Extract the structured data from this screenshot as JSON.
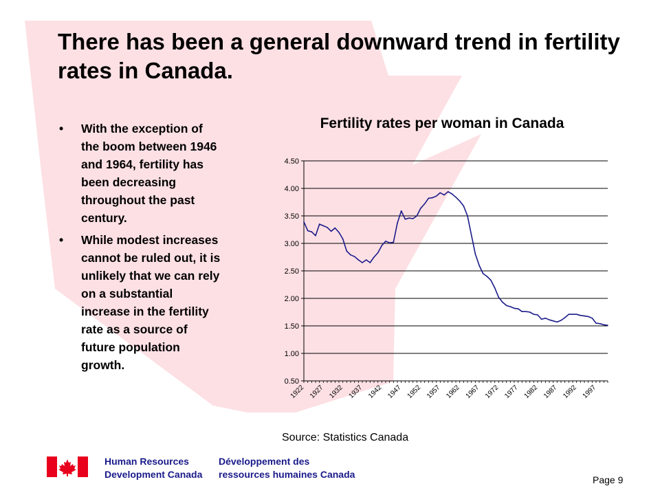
{
  "slide": {
    "title": "There has been a general downward trend in fertility rates in Canada.",
    "bullets": [
      "With the exception of the boom between 1946 and 1964, fertility has been decreasing throughout the past century.",
      "While modest increases cannot be ruled out, it is unlikely that we can rely on a substantial increase in the fertility rate as a source of  future population growth."
    ],
    "source": "Source: Statistics Canada",
    "page": "Page 9",
    "footer": {
      "en_line1": "Human Resources",
      "en_line2": "Development Canada",
      "fr_line1": "Développement des",
      "fr_line2": "ressources humaines Canada"
    },
    "colors": {
      "leaf": "#fde0e4",
      "line": "#1a1a8a",
      "flag_red": "#e8001c",
      "dept_text": "#1a1a8a"
    }
  },
  "chart_data": {
    "type": "line",
    "title": "Fertility rates per woman in Canada",
    "xlabel": "",
    "ylabel": "",
    "ylim": [
      0.5,
      4.5
    ],
    "yticks": [
      "0.50",
      "1.00",
      "1.50",
      "2.00",
      "2.50",
      "3.00",
      "3.50",
      "4.00",
      "4.50"
    ],
    "xticks": [
      "1922",
      "1927",
      "1932",
      "1937",
      "1942",
      "1947",
      "1952",
      "1957",
      "1962",
      "1967",
      "1972",
      "1977",
      "1982",
      "1987",
      "1992",
      "1997"
    ],
    "grid": "horizontal",
    "legend": "none",
    "series": [
      {
        "x": [
          1922,
          1923,
          1924,
          1925,
          1926,
          1927,
          1928,
          1929,
          1930,
          1931,
          1932,
          1933,
          1934,
          1935,
          1936,
          1937,
          1938,
          1939,
          1940,
          1941,
          1942,
          1943,
          1944,
          1945,
          1946,
          1947,
          1948,
          1949,
          1950,
          1951,
          1952,
          1953,
          1954,
          1955,
          1956,
          1957,
          1958,
          1959,
          1960,
          1961,
          1962,
          1963,
          1964,
          1965,
          1966,
          1967,
          1968,
          1969,
          1970,
          1971,
          1972,
          1973,
          1974,
          1975,
          1976,
          1977,
          1978,
          1979,
          1980,
          1981,
          1982,
          1983,
          1984,
          1985,
          1986,
          1987,
          1988,
          1989,
          1990,
          1991,
          1992,
          1993,
          1994,
          1995,
          1996,
          1997,
          1998,
          1999,
          2000
        ],
        "values": [
          3.39,
          3.23,
          3.21,
          3.14,
          3.35,
          3.32,
          3.29,
          3.22,
          3.28,
          3.2,
          3.08,
          2.86,
          2.79,
          2.76,
          2.7,
          2.65,
          2.7,
          2.65,
          2.75,
          2.83,
          2.96,
          3.04,
          3.01,
          3.02,
          3.37,
          3.59,
          3.44,
          3.46,
          3.45,
          3.5,
          3.64,
          3.72,
          3.82,
          3.83,
          3.86,
          3.92,
          3.88,
          3.94,
          3.9,
          3.84,
          3.77,
          3.68,
          3.5,
          3.15,
          2.81,
          2.6,
          2.45,
          2.4,
          2.33,
          2.19,
          2.02,
          1.93,
          1.87,
          1.85,
          1.82,
          1.81,
          1.76,
          1.76,
          1.75,
          1.71,
          1.7,
          1.62,
          1.64,
          1.61,
          1.59,
          1.57,
          1.6,
          1.65,
          1.71,
          1.71,
          1.71,
          1.69,
          1.68,
          1.67,
          1.64,
          1.55,
          1.54,
          1.52,
          1.51
        ]
      }
    ]
  }
}
